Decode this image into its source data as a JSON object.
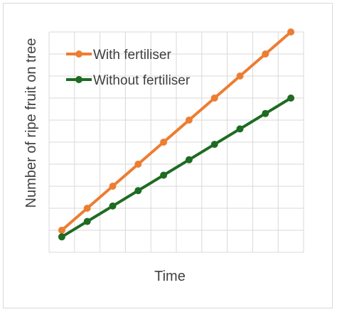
{
  "chart_data": {
    "type": "line",
    "title": "",
    "xlabel": "Time",
    "ylabel": "Number of ripe fruit on tree",
    "x": [
      1,
      2,
      3,
      4,
      5,
      6,
      7,
      8,
      9,
      10
    ],
    "xlim": [
      0.5,
      10.5
    ],
    "ylim": [
      0,
      10
    ],
    "grid": true,
    "legend_position": "top-left",
    "series": [
      {
        "name": "With fertiliser",
        "color": "#ED7D31",
        "values": [
          1.0,
          2.0,
          3.0,
          4.0,
          5.0,
          6.0,
          7.0,
          8.0,
          9.0,
          10.0
        ]
      },
      {
        "name": "Without fertiliser",
        "color": "#1E6B22",
        "values": [
          0.7,
          1.4,
          2.1,
          2.8,
          3.5,
          4.2,
          4.9,
          5.6,
          6.3,
          7.0
        ]
      }
    ]
  }
}
